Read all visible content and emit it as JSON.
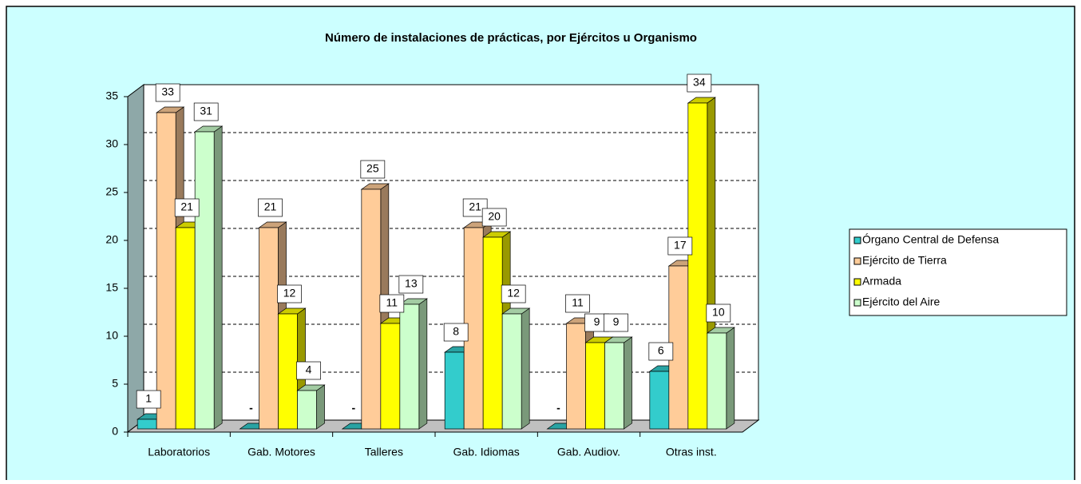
{
  "chart_data": {
    "type": "bar3d",
    "title": "Número de instalaciones de prácticas, por Ejércitos u Organismo",
    "categories": [
      "Laboratorios",
      "Gab. Motores",
      "Talleres",
      "Gab. Idiomas",
      "Gab. Audiov.",
      "Otras inst."
    ],
    "series": [
      {
        "name": "Órgano Central de Defensa",
        "color": "#33cccc",
        "values": [
          1,
          0,
          0,
          8,
          0,
          6
        ],
        "value_labels": [
          "1",
          "-",
          "-",
          "8",
          "-",
          "6"
        ]
      },
      {
        "name": "Ejército de Tierra",
        "color": "#ffcc99",
        "values": [
          33,
          21,
          25,
          21,
          11,
          17
        ]
      },
      {
        "name": "Armada",
        "color": "#ffff00",
        "values": [
          21,
          12,
          11,
          20,
          9,
          34
        ]
      },
      {
        "name": "Ejército del Aire",
        "color": "#ccffcc",
        "values": [
          31,
          4,
          13,
          12,
          9,
          10
        ]
      }
    ],
    "ylim": [
      0,
      35
    ],
    "yticks": [
      0,
      5,
      10,
      15,
      20,
      25,
      30,
      35
    ],
    "grid": true,
    "legend": "right"
  }
}
